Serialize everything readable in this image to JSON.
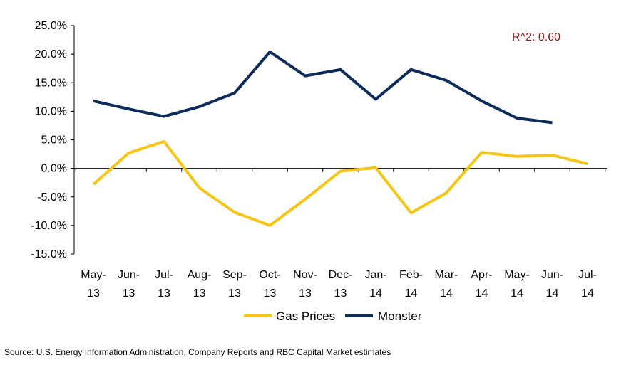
{
  "chart_data": {
    "type": "line",
    "categories": [
      [
        "May-",
        "13"
      ],
      [
        "Jun-",
        "13"
      ],
      [
        "Jul-",
        "13"
      ],
      [
        "Aug-",
        "13"
      ],
      [
        "Sep-",
        "13"
      ],
      [
        "Oct-",
        "13"
      ],
      [
        "Nov-",
        "13"
      ],
      [
        "Dec-",
        "13"
      ],
      [
        "Jan-",
        "14"
      ],
      [
        "Feb-",
        "14"
      ],
      [
        "Mar-",
        "14"
      ],
      [
        "Apr-",
        "14"
      ],
      [
        "May-",
        "14"
      ],
      [
        "Jun-",
        "14"
      ],
      [
        "Jul-",
        "14"
      ]
    ],
    "ylim": [
      -15,
      25
    ],
    "ytick_values": [
      25,
      20,
      15,
      10,
      5,
      0,
      -5,
      -10,
      -15
    ],
    "yticks": [
      "25.0%",
      "20.0%",
      "15.0%",
      "10.0%",
      "5.0%",
      "0.0%",
      "-5.0%",
      "-10.0%",
      "-15.0%"
    ],
    "series": [
      {
        "name": "Gas Prices",
        "color": "#F5C518",
        "values": [
          -2.8,
          2.7,
          4.7,
          -3.4,
          -7.7,
          -10.0,
          -5.4,
          -0.5,
          0.1,
          -7.8,
          -4.3,
          2.8,
          2.1,
          2.3,
          0.8
        ]
      },
      {
        "name": "Monster",
        "color": "#0D2C5A",
        "values": [
          11.8,
          10.4,
          9.1,
          10.8,
          13.2,
          20.4,
          16.2,
          17.3,
          12.1,
          17.3,
          15.4,
          11.8,
          8.8,
          8.0,
          null
        ]
      }
    ],
    "annotation": {
      "text": "R^2: 0.60",
      "color": "#8B1A1A"
    },
    "legend_position": "bottom-center",
    "grid": false
  },
  "source": "Source: U.S. Energy Information Administration, Company Reports and RBC Capital Market estimates"
}
